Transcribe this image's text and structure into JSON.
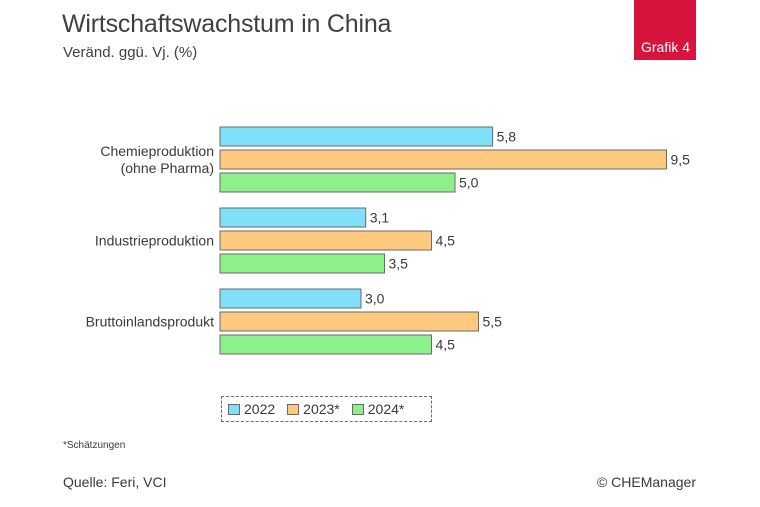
{
  "header": {
    "title": "Wirtschaftswachstum in China",
    "subtitle": "Veränd. ggü. Vj. (%)",
    "badge": "Grafik 4"
  },
  "chart_data": {
    "type": "bar",
    "orientation": "horizontal",
    "categories": [
      "Chemieproduktion\n(ohne Pharma)",
      "Industrieproduktion",
      "Bruttoinlandsprodukt"
    ],
    "series": [
      {
        "name": "2022",
        "values": [
          5.8,
          3.1,
          3.0
        ],
        "labels": [
          "5,8",
          "3,1",
          "3,0"
        ],
        "color": "#7fe0f8"
      },
      {
        "name": "2023*",
        "values": [
          9.5,
          4.5,
          5.5
        ],
        "labels": [
          "9,5",
          "4,5",
          "5,5"
        ],
        "color": "#fcc97e"
      },
      {
        "name": "2024*",
        "values": [
          5.0,
          3.5,
          4.5
        ],
        "labels": [
          "5,0",
          "3,5",
          "4,5"
        ],
        "color": "#8df08a"
      }
    ],
    "xlim": [
      0,
      9.5
    ],
    "grid": false,
    "legend_position": "bottom"
  },
  "footer": {
    "footnote": "*Schätzungen",
    "source": "Quelle: Feri, VCI",
    "copyright": "© CHEManager"
  },
  "colors": {
    "badge": "#d6143d",
    "bar_border": "#6a6a6a"
  }
}
